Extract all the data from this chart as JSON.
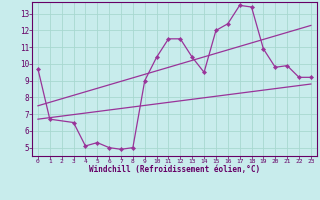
{
  "xlabel": "Windchill (Refroidissement éolien,°C)",
  "background_color": "#c8ecec",
  "line_color": "#993399",
  "xlim": [
    -0.5,
    23.5
  ],
  "ylim": [
    4.5,
    13.7
  ],
  "xticks": [
    0,
    1,
    2,
    3,
    4,
    5,
    6,
    7,
    8,
    9,
    10,
    11,
    12,
    13,
    14,
    15,
    16,
    17,
    18,
    19,
    20,
    21,
    22,
    23
  ],
  "yticks": [
    5,
    6,
    7,
    8,
    9,
    10,
    11,
    12,
    13
  ],
  "line1_x": [
    0,
    1,
    3,
    4,
    5,
    6,
    7,
    8,
    9,
    10,
    11,
    12,
    13,
    14,
    15,
    16,
    17,
    18,
    19,
    20,
    21,
    22,
    23
  ],
  "line1_y": [
    9.7,
    6.7,
    6.5,
    5.1,
    5.3,
    5.0,
    4.9,
    5.0,
    9.0,
    10.4,
    11.5,
    11.5,
    10.4,
    9.5,
    12.0,
    12.4,
    13.5,
    13.4,
    10.9,
    9.8,
    9.9,
    9.2,
    9.2
  ],
  "line2_x": [
    0,
    23
  ],
  "line2_y": [
    6.7,
    8.8
  ],
  "line3_x": [
    0,
    23
  ],
  "line3_y": [
    7.5,
    12.3
  ],
  "grid_color": "#a8d8d0",
  "font_color": "#660066",
  "spine_color": "#660066"
}
